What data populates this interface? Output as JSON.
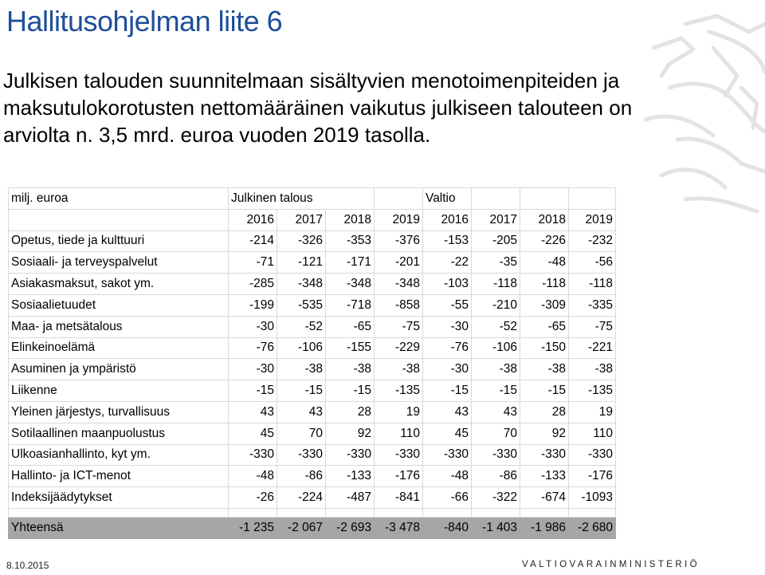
{
  "slide": {
    "title": "Hallitusohjelman liite 6",
    "body": "Julkisen talouden suunnitelmaan sisältyvien menotoimenpiteiden ja maksutulokorotusten nettomääräinen vaikutus julkiseen talouteen on arviolta n. 3,5 mrd. euroa vuoden 2019 tasolla.",
    "date": "8.10.2015",
    "organization": "VALTIOVARAINMINISTERIÖ",
    "emblem_icon": "coat-of-arms-lion-icon"
  },
  "table": {
    "unit_label": "milj. euroa",
    "group_public": "Julkinen talous",
    "group_state": "Valtio",
    "years": [
      "2016",
      "2017",
      "2018",
      "2019",
      "2016",
      "2017",
      "2018",
      "2019"
    ],
    "rows": [
      {
        "label": "Opetus, tiede ja kulttuuri",
        "values": [
          "-214",
          "-326",
          "-353",
          "-376",
          "-153",
          "-205",
          "-226",
          "-232"
        ]
      },
      {
        "label": "Sosiaali- ja terveyspalvelut",
        "values": [
          "-71",
          "-121",
          "-171",
          "-201",
          "-22",
          "-35",
          "-48",
          "-56"
        ]
      },
      {
        "label": "Asiakasmaksut, sakot ym.",
        "values": [
          "-285",
          "-348",
          "-348",
          "-348",
          "-103",
          "-118",
          "-118",
          "-118"
        ]
      },
      {
        "label": "Sosiaalietuudet",
        "values": [
          "-199",
          "-535",
          "-718",
          "-858",
          "-55",
          "-210",
          "-309",
          "-335"
        ]
      },
      {
        "label": "Maa- ja metsätalous",
        "values": [
          "-30",
          "-52",
          "-65",
          "-75",
          "-30",
          "-52",
          "-65",
          "-75"
        ]
      },
      {
        "label": "Elinkeinoelämä",
        "values": [
          "-76",
          "-106",
          "-155",
          "-229",
          "-76",
          "-106",
          "-150",
          "-221"
        ]
      },
      {
        "label": "Asuminen ja ympäristö",
        "values": [
          "-30",
          "-38",
          "-38",
          "-38",
          "-30",
          "-38",
          "-38",
          "-38"
        ]
      },
      {
        "label": "Liikenne",
        "values": [
          "-15",
          "-15",
          "-15",
          "-135",
          "-15",
          "-15",
          "-15",
          "-135"
        ]
      },
      {
        "label": "Yleinen järjestys, turvallisuus",
        "values": [
          "43",
          "43",
          "28",
          "19",
          "43",
          "43",
          "28",
          "19"
        ]
      },
      {
        "label": "Sotilaallinen maanpuolustus",
        "values": [
          "45",
          "70",
          "92",
          "110",
          "45",
          "70",
          "92",
          "110"
        ]
      },
      {
        "label": "Ulkoasianhallinto, kyt ym.",
        "values": [
          "-330",
          "-330",
          "-330",
          "-330",
          "-330",
          "-330",
          "-330",
          "-330"
        ]
      },
      {
        "label": "Hallinto- ja ICT-menot",
        "values": [
          "-48",
          "-86",
          "-133",
          "-176",
          "-48",
          "-86",
          "-133",
          "-176"
        ]
      },
      {
        "label": "Indeksijäädytykset",
        "values": [
          "-26",
          "-224",
          "-487",
          "-841",
          "-66",
          "-322",
          "-674",
          "-1093"
        ]
      }
    ],
    "total": {
      "label": "Yhteensä",
      "values": [
        "-1 235",
        "-2 067",
        "-2 693",
        "-3 478",
        "-840",
        "-1 403",
        "-1 986",
        "-2 680"
      ]
    }
  }
}
